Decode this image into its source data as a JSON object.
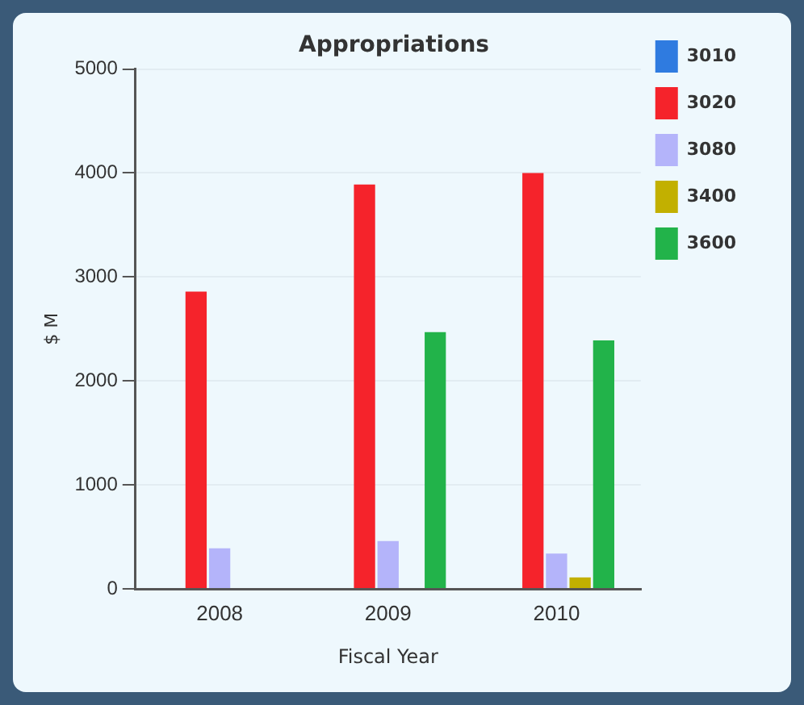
{
  "chart_data": {
    "type": "bar",
    "title": "Appropriations",
    "xlabel": "Fiscal Year",
    "ylabel": "$ M",
    "categories": [
      "2008",
      "2009",
      "2010"
    ],
    "series": [
      {
        "name": "3010",
        "color": "#2f7be0",
        "values": [
          0,
          0,
          0
        ]
      },
      {
        "name": "3020",
        "color": "#f5232b",
        "values": [
          2860,
          3890,
          4000
        ]
      },
      {
        "name": "3080",
        "color": "#b4b4fa",
        "values": [
          390,
          460,
          340
        ]
      },
      {
        "name": "3400",
        "color": "#c2b000",
        "values": [
          0,
          0,
          110
        ]
      },
      {
        "name": "3600",
        "color": "#22b34a",
        "values": [
          0,
          2470,
          2390
        ]
      }
    ],
    "ylim": [
      0,
      5000
    ],
    "yticks": [
      0,
      1000,
      2000,
      3000,
      4000,
      5000
    ],
    "grid": "y",
    "legend": "right"
  }
}
